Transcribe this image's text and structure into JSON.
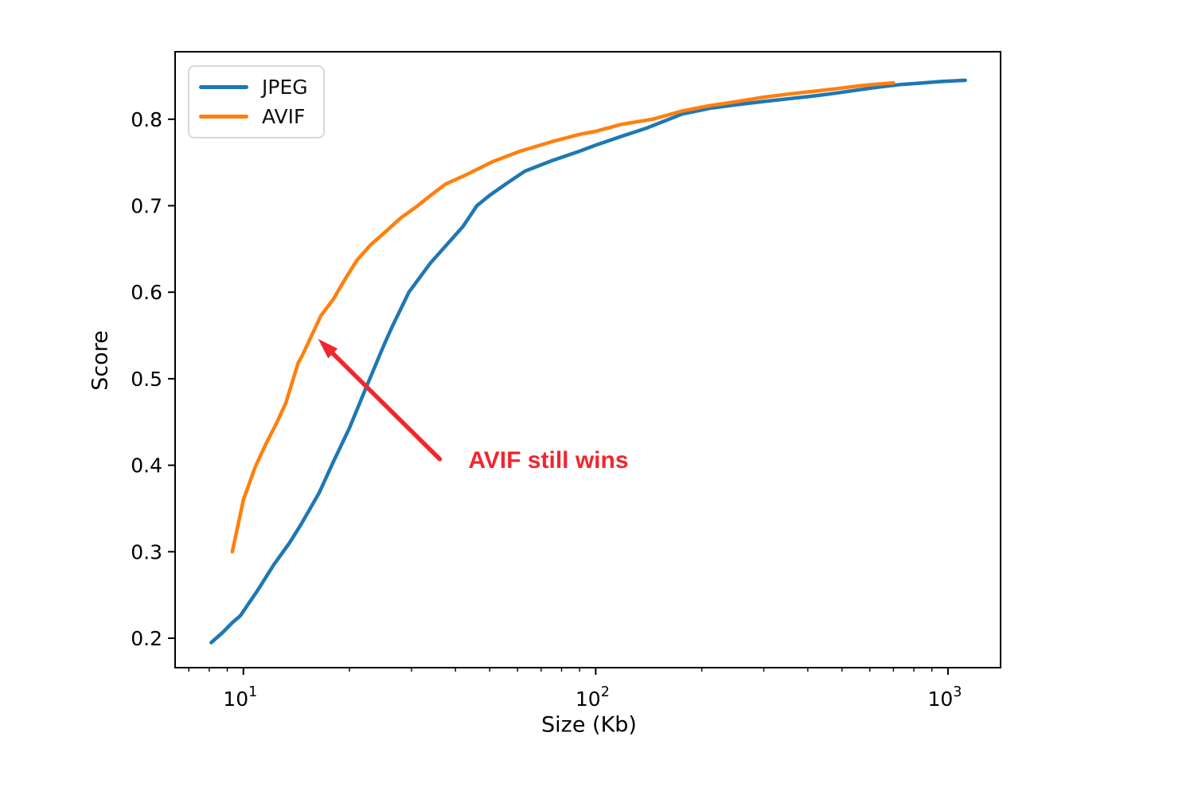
{
  "chart_data": {
    "type": "line",
    "title": "",
    "xlabel": "Size (Kb)",
    "ylabel": "Score",
    "x_scale": "log",
    "xlim": [
      6.4,
      1410
    ],
    "ylim": [
      0.166,
      0.878
    ],
    "x_ticks_major": [
      10,
      100,
      1000
    ],
    "x_ticks_minor": [
      7,
      8,
      9,
      20,
      30,
      40,
      50,
      60,
      70,
      80,
      90,
      200,
      300,
      400,
      500,
      600,
      700,
      800,
      900
    ],
    "y_ticks": [
      0.2,
      0.3,
      0.4,
      0.5,
      0.6,
      0.7,
      0.8
    ],
    "grid": false,
    "legend_position": "upper left",
    "series": [
      {
        "name": "JPEG",
        "color": "#1f77b4",
        "points": [
          [
            8.1,
            0.195
          ],
          [
            8.7,
            0.206
          ],
          [
            9.3,
            0.218
          ],
          [
            9.8,
            0.226
          ],
          [
            11,
            0.256
          ],
          [
            12.2,
            0.285
          ],
          [
            13.5,
            0.31
          ],
          [
            14.6,
            0.332
          ],
          [
            16.4,
            0.368
          ],
          [
            18,
            0.404
          ],
          [
            20,
            0.443
          ],
          [
            22,
            0.484
          ],
          [
            25,
            0.538
          ],
          [
            26.5,
            0.561
          ],
          [
            29.5,
            0.6
          ],
          [
            34,
            0.634
          ],
          [
            38,
            0.656
          ],
          [
            42,
            0.676
          ],
          [
            46,
            0.7
          ],
          [
            50,
            0.712
          ],
          [
            56,
            0.726
          ],
          [
            63,
            0.74
          ],
          [
            75,
            0.752
          ],
          [
            90,
            0.763
          ],
          [
            100,
            0.77
          ],
          [
            118,
            0.78
          ],
          [
            140,
            0.79
          ],
          [
            176,
            0.806
          ],
          [
            210,
            0.8125
          ],
          [
            248,
            0.8165
          ],
          [
            300,
            0.8205
          ],
          [
            351,
            0.8235
          ],
          [
            420,
            0.827
          ],
          [
            478,
            0.83
          ],
          [
            560,
            0.834
          ],
          [
            630,
            0.837
          ],
          [
            730,
            0.84
          ],
          [
            820,
            0.8415
          ],
          [
            950,
            0.8435
          ],
          [
            1120,
            0.845
          ]
        ]
      },
      {
        "name": "AVIF",
        "color": "#ff7f0e",
        "points": [
          [
            9.3,
            0.3
          ],
          [
            10,
            0.36
          ],
          [
            10.8,
            0.398
          ],
          [
            11.6,
            0.425
          ],
          [
            12.4,
            0.448
          ],
          [
            13.2,
            0.472
          ],
          [
            14.3,
            0.518
          ],
          [
            14.7,
            0.527
          ],
          [
            15.5,
            0.547
          ],
          [
            16.6,
            0.573
          ],
          [
            18,
            0.592
          ],
          [
            19.5,
            0.616
          ],
          [
            21,
            0.637
          ],
          [
            23,
            0.655
          ],
          [
            25.5,
            0.671
          ],
          [
            28,
            0.686
          ],
          [
            31,
            0.699
          ],
          [
            34,
            0.712
          ],
          [
            37.5,
            0.725
          ],
          [
            43,
            0.736
          ],
          [
            51,
            0.751
          ],
          [
            61,
            0.763
          ],
          [
            75,
            0.774
          ],
          [
            90,
            0.7825
          ],
          [
            100,
            0.786
          ],
          [
            118,
            0.794
          ],
          [
            145,
            0.8
          ],
          [
            176,
            0.8095
          ],
          [
            210,
            0.8155
          ],
          [
            248,
            0.82
          ],
          [
            300,
            0.8255
          ],
          [
            351,
            0.829
          ],
          [
            420,
            0.8325
          ],
          [
            478,
            0.835
          ],
          [
            560,
            0.8385
          ],
          [
            630,
            0.8405
          ],
          [
            700,
            0.842
          ]
        ]
      }
    ],
    "annotation": {
      "text": "AVIF still wins",
      "color": "#f2262e",
      "font_weight": "bold",
      "text_at": {
        "x": 43.5,
        "y": 0.403
      },
      "arrow_tail": {
        "x": 36.1,
        "y": 0.407
      },
      "arrow_tip": {
        "x": 16.3,
        "y": 0.546
      }
    },
    "axis_color": "#000000",
    "tick_label_color": "#000000"
  }
}
